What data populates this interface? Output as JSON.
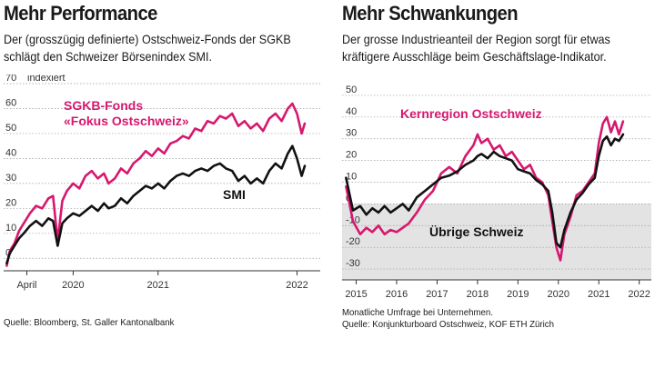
{
  "left": {
    "title": "Mehr Performance",
    "subtitle": "Der (grosszügig definierte) Ostschweiz-Fonds der SGKB schlägt den Schweizer Börsenindex SMI.",
    "source": "Quelle: Bloomberg, St. Galler Kantonalbank"
  },
  "right": {
    "title": "Mehr Schwankungen",
    "subtitle": "Der grosse Industrieanteil der Region sorgt für etwas kräftigere Ausschläge beim Geschäftslage-Indikator.",
    "source_note": "Monatliche Umfrage bei Unternehmen.",
    "source": "Quelle: Konjunkturboard Ostschweiz, KOF ETH Zürich"
  },
  "colors": {
    "pink": "#d6186e",
    "black": "#111111",
    "band": "#e3e3e3"
  },
  "chart_data": [
    {
      "type": "line",
      "unit_label": "indexiert",
      "ylim": [
        -5,
        70
      ],
      "yticks": [
        0,
        10,
        20,
        30,
        40,
        50,
        60,
        70
      ],
      "x_range": [
        2020.1,
        2022.15
      ],
      "xticks": [
        {
          "x": 2020.25,
          "label": "April"
        },
        {
          "x": 2020.55,
          "label": "2020"
        },
        {
          "x": 2021.1,
          "label": "2021"
        },
        {
          "x": 2022.0,
          "label": "2022"
        }
      ],
      "series": [
        {
          "name": "SGKB-Fonds «Fokus Ostschweiz»",
          "label_lines": [
            "SGKB-Fonds",
            "«Fokus Ostschweiz»"
          ],
          "color": "#d6186e",
          "x": [
            2020.12,
            2020.14,
            2020.17,
            2020.2,
            2020.23,
            2020.27,
            2020.31,
            2020.35,
            2020.39,
            2020.42,
            2020.45,
            2020.48,
            2020.51,
            2020.55,
            2020.59,
            2020.63,
            2020.67,
            2020.71,
            2020.75,
            2020.78,
            2020.82,
            2020.86,
            2020.9,
            2020.94,
            2020.98,
            2021.02,
            2021.06,
            2021.1,
            2021.14,
            2021.18,
            2021.22,
            2021.26,
            2021.3,
            2021.34,
            2021.38,
            2021.42,
            2021.46,
            2021.5,
            2021.54,
            2021.58,
            2021.62,
            2021.66,
            2021.7,
            2021.74,
            2021.78,
            2021.82,
            2021.86,
            2021.9,
            2021.94,
            2021.97,
            2022.0,
            2022.03,
            2022.05
          ],
          "y": [
            -3,
            3,
            6,
            11,
            14,
            18,
            21,
            20,
            24,
            25,
            7,
            23,
            27,
            30,
            28,
            33,
            35,
            32,
            34,
            30,
            32,
            36,
            34,
            38,
            40,
            43,
            41,
            44,
            42,
            46,
            47,
            49,
            48,
            52,
            51,
            55,
            54,
            57,
            56,
            58,
            53,
            55,
            52,
            54,
            51,
            56,
            58,
            55,
            60,
            62,
            58,
            50,
            54
          ]
        },
        {
          "name": "SMI",
          "label_lines": [
            "SMI"
          ],
          "color": "#111111",
          "x": [
            2020.12,
            2020.14,
            2020.17,
            2020.2,
            2020.23,
            2020.27,
            2020.31,
            2020.35,
            2020.39,
            2020.42,
            2020.45,
            2020.48,
            2020.51,
            2020.55,
            2020.59,
            2020.63,
            2020.67,
            2020.71,
            2020.75,
            2020.78,
            2020.82,
            2020.86,
            2020.9,
            2020.94,
            2020.98,
            2021.02,
            2021.06,
            2021.1,
            2021.14,
            2021.18,
            2021.22,
            2021.26,
            2021.3,
            2021.34,
            2021.38,
            2021.42,
            2021.46,
            2021.5,
            2021.54,
            2021.58,
            2021.62,
            2021.66,
            2021.7,
            2021.74,
            2021.78,
            2021.82,
            2021.86,
            2021.9,
            2021.94,
            2021.97,
            2022.0,
            2022.03,
            2022.05
          ],
          "y": [
            -2,
            2,
            5,
            8,
            10,
            13,
            15,
            13,
            16,
            15,
            5,
            14,
            16,
            18,
            17,
            19,
            21,
            19,
            22,
            20,
            21,
            24,
            22,
            25,
            27,
            29,
            28,
            30,
            28,
            31,
            33,
            34,
            33,
            35,
            36,
            35,
            37,
            38,
            36,
            35,
            31,
            33,
            30,
            32,
            30,
            35,
            38,
            36,
            42,
            45,
            40,
            33,
            37
          ]
        }
      ]
    },
    {
      "type": "line",
      "ylim": [
        -35,
        55
      ],
      "yticks": [
        -30,
        -20,
        -10,
        0,
        10,
        20,
        30,
        40,
        50
      ],
      "shaded_band": [
        -35,
        0
      ],
      "x_range": [
        2014.65,
        2022.3
      ],
      "xticks": [
        {
          "x": 2015,
          "label": "2015"
        },
        {
          "x": 2016,
          "label": "2016"
        },
        {
          "x": 2017,
          "label": "2017"
        },
        {
          "x": 2018,
          "label": "2018"
        },
        {
          "x": 2019,
          "label": "2019"
        },
        {
          "x": 2020,
          "label": "2020"
        },
        {
          "x": 2021,
          "label": "2021"
        },
        {
          "x": 2022,
          "label": "2022"
        }
      ],
      "series": [
        {
          "name": "Kernregion Ostschweiz",
          "label_lines": [
            "Kernregion Ostschweiz"
          ],
          "color": "#d6186e",
          "x": [
            2014.75,
            2014.92,
            2015.1,
            2015.25,
            2015.4,
            2015.55,
            2015.7,
            2015.85,
            2016.0,
            2016.15,
            2016.3,
            2016.5,
            2016.7,
            2016.9,
            2017.1,
            2017.3,
            2017.5,
            2017.7,
            2017.9,
            2018.0,
            2018.1,
            2018.25,
            2018.4,
            2018.55,
            2018.7,
            2018.85,
            2019.0,
            2019.15,
            2019.3,
            2019.45,
            2019.6,
            2019.75,
            2019.85,
            2019.95,
            2020.05,
            2020.15,
            2020.3,
            2020.45,
            2020.6,
            2020.75,
            2020.9,
            2021.0,
            2021.1,
            2021.2,
            2021.3,
            2021.4,
            2021.5,
            2021.6
          ],
          "y": [
            8,
            -8,
            -14,
            -11,
            -13,
            -10,
            -14,
            -12,
            -13,
            -11,
            -9,
            -4,
            2,
            6,
            14,
            17,
            14,
            22,
            27,
            32,
            28,
            30,
            25,
            27,
            22,
            24,
            20,
            16,
            18,
            12,
            10,
            4,
            -8,
            -20,
            -26,
            -14,
            -6,
            4,
            6,
            10,
            14,
            28,
            37,
            40,
            33,
            38,
            32,
            38
          ]
        },
        {
          "name": "Übrige Schweiz",
          "label_lines": [
            "Übrige Schweiz"
          ],
          "color": "#111111",
          "x": [
            2014.75,
            2014.92,
            2015.1,
            2015.25,
            2015.4,
            2015.55,
            2015.7,
            2015.85,
            2016.0,
            2016.15,
            2016.3,
            2016.5,
            2016.7,
            2016.9,
            2017.1,
            2017.3,
            2017.5,
            2017.7,
            2017.9,
            2018.0,
            2018.1,
            2018.25,
            2018.4,
            2018.55,
            2018.7,
            2018.85,
            2019.0,
            2019.15,
            2019.3,
            2019.45,
            2019.6,
            2019.75,
            2019.85,
            2019.95,
            2020.05,
            2020.15,
            2020.3,
            2020.45,
            2020.6,
            2020.75,
            2020.9,
            2021.0,
            2021.1,
            2021.2,
            2021.3,
            2021.4,
            2021.5,
            2021.6
          ],
          "y": [
            12,
            -3,
            -1,
            -5,
            -2,
            -4,
            -1,
            -4,
            -2,
            0,
            -3,
            3,
            6,
            9,
            12,
            13,
            15,
            18,
            20,
            22,
            23,
            21,
            24,
            22,
            21,
            20,
            16,
            15,
            14,
            11,
            9,
            6,
            -4,
            -18,
            -20,
            -12,
            -4,
            2,
            5,
            9,
            12,
            22,
            29,
            31,
            27,
            30,
            29,
            32
          ]
        }
      ]
    }
  ]
}
